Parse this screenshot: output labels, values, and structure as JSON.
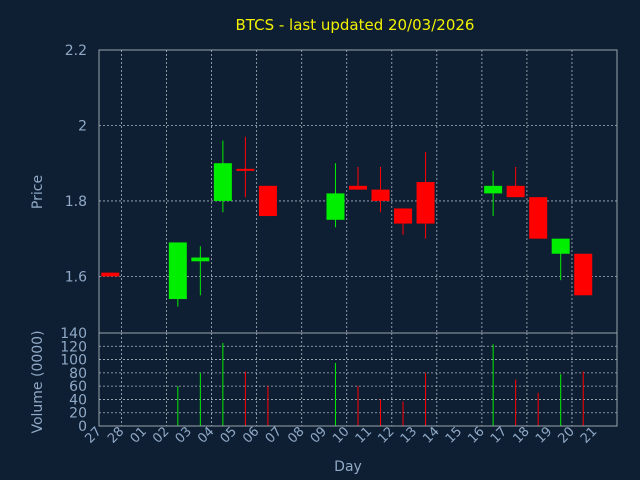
{
  "chart_data": {
    "type": "candlestick",
    "title": "BTCS - last updated 20/03/2026",
    "xlabel": "Day",
    "ylabel_price": "Price",
    "ylabel_volume": "Volume (0000)",
    "grid": true,
    "up_color": "#00ee00",
    "down_color": "#ff0000",
    "price_ylim": [
      1.45,
      2.2
    ],
    "price_ticks": [
      "1.6",
      "1.8",
      "2",
      "2.2"
    ],
    "volume_ylim": [
      0,
      140
    ],
    "volume_ticks": [
      "0",
      "20",
      "40",
      "60",
      "80",
      "100",
      "120",
      "140"
    ],
    "x_ticks": [
      "27",
      "28",
      "01",
      "02",
      "03",
      "04",
      "05",
      "06",
      "07",
      "08",
      "09",
      "10",
      "11",
      "12",
      "13",
      "14",
      "15",
      "16",
      "17",
      "18",
      "19",
      "20",
      "21"
    ],
    "candles": [
      {
        "day": "27",
        "open": 1.61,
        "high": 1.61,
        "low": 1.6,
        "close": 1.6,
        "volume": 0
      },
      {
        "day": "02",
        "open": 1.54,
        "high": 1.69,
        "low": 1.52,
        "close": 1.69,
        "volume": 60
      },
      {
        "day": "03",
        "open": 1.64,
        "high": 1.68,
        "low": 1.55,
        "close": 1.65,
        "volume": 80
      },
      {
        "day": "04",
        "open": 1.8,
        "high": 1.96,
        "low": 1.77,
        "close": 1.9,
        "volume": 125
      },
      {
        "day": "05",
        "open": 1.885,
        "high": 1.97,
        "low": 1.81,
        "close": 1.88,
        "volume": 82
      },
      {
        "day": "06",
        "open": 1.84,
        "high": 1.84,
        "low": 1.76,
        "close": 1.76,
        "volume": 60
      },
      {
        "day": "09",
        "open": 1.75,
        "high": 1.9,
        "low": 1.73,
        "close": 1.82,
        "volume": 95
      },
      {
        "day": "10",
        "open": 1.84,
        "high": 1.89,
        "low": 1.83,
        "close": 1.83,
        "volume": 60
      },
      {
        "day": "11",
        "open": 1.83,
        "high": 1.89,
        "low": 1.77,
        "close": 1.8,
        "volume": 40
      },
      {
        "day": "12",
        "open": 1.78,
        "high": 1.78,
        "low": 1.71,
        "close": 1.74,
        "volume": 37
      },
      {
        "day": "13",
        "open": 1.85,
        "high": 1.93,
        "low": 1.7,
        "close": 1.74,
        "volume": 80
      },
      {
        "day": "16",
        "open": 1.82,
        "high": 1.88,
        "low": 1.76,
        "close": 1.84,
        "volume": 123
      },
      {
        "day": "17",
        "open": 1.84,
        "high": 1.89,
        "low": 1.81,
        "close": 1.81,
        "volume": 70
      },
      {
        "day": "18",
        "open": 1.81,
        "high": 1.81,
        "low": 1.7,
        "close": 1.7,
        "volume": 50
      },
      {
        "day": "19",
        "open": 1.66,
        "high": 1.7,
        "low": 1.59,
        "close": 1.7,
        "volume": 78
      },
      {
        "day": "20",
        "open": 1.66,
        "high": 1.66,
        "low": 1.55,
        "close": 1.55,
        "volume": 82
      }
    ]
  }
}
